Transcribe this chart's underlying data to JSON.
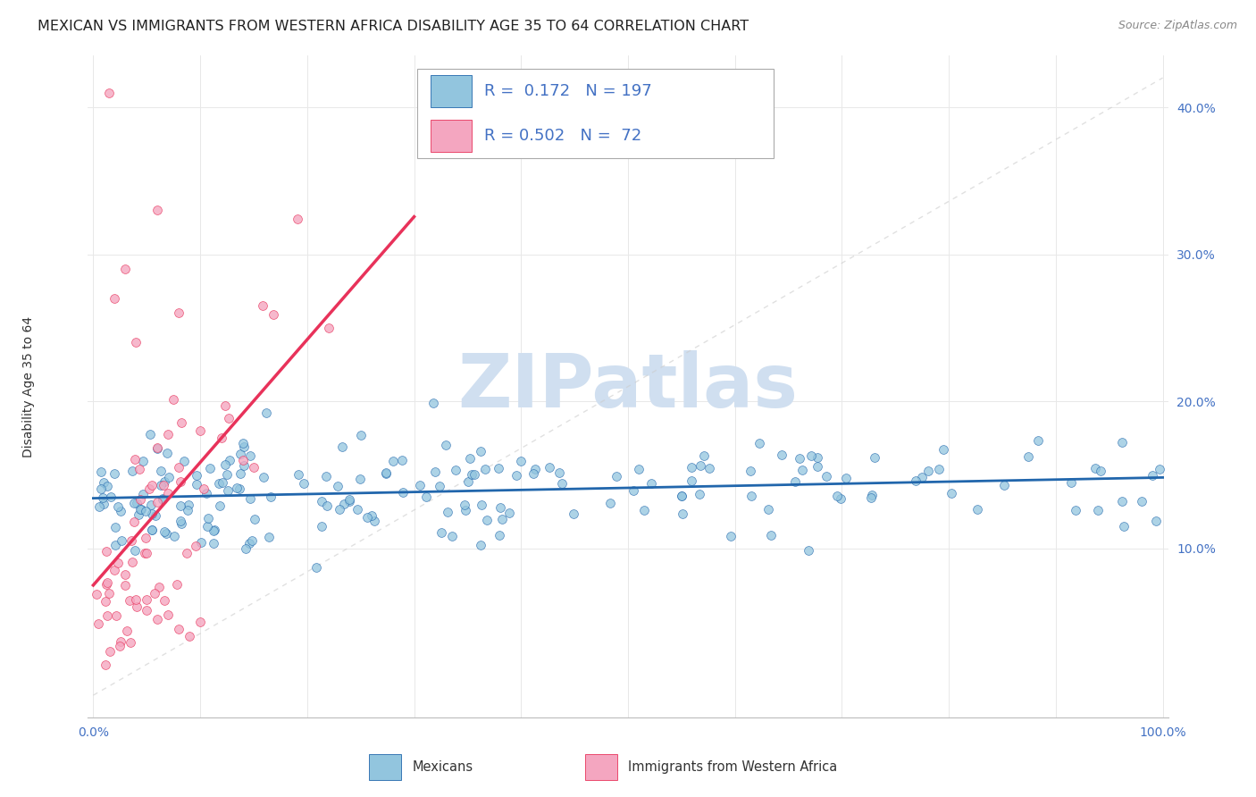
{
  "title": "MEXICAN VS IMMIGRANTS FROM WESTERN AFRICA DISABILITY AGE 35 TO 64 CORRELATION CHART",
  "source": "Source: ZipAtlas.com",
  "ylabel": "Disability Age 35 to 64",
  "legend_label1": "Mexicans",
  "legend_label2": "Immigrants from Western Africa",
  "R1": 0.172,
  "N1": 197,
  "R2": 0.502,
  "N2": 72,
  "color_blue": "#92c5de",
  "color_pink": "#f4a6c0",
  "line_blue": "#2166ac",
  "line_pink": "#e8325a",
  "ref_line_color": "#cccccc",
  "watermark_color": "#d0dff0",
  "title_color": "#222222",
  "source_color": "#888888",
  "axis_color": "#4472c4",
  "background_color": "#ffffff",
  "grid_color": "#e8e8e8",
  "legend_box_color": "#aaaaaa",
  "title_fontsize": 11.5,
  "tick_fontsize": 10,
  "ylabel_fontsize": 10,
  "legend_fontsize": 13
}
